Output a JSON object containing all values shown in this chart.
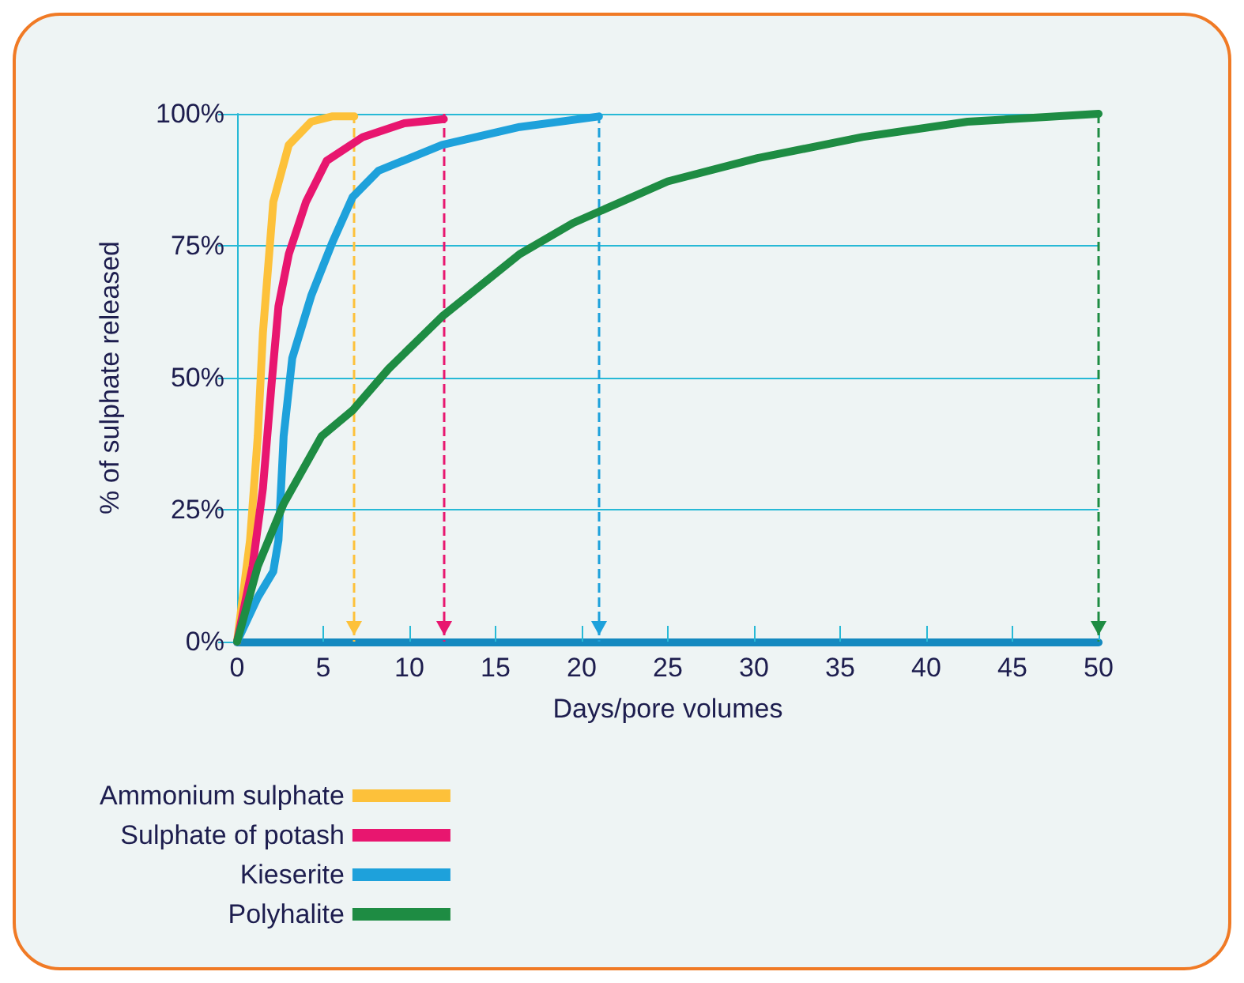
{
  "chart_data": {
    "type": "line",
    "xlabel": "Days/pore volumes",
    "ylabel": "% of sulphate released",
    "xlim": [
      0,
      50
    ],
    "xticks": [
      0,
      5,
      10,
      15,
      20,
      25,
      30,
      35,
      40,
      45,
      50
    ],
    "ylim": [
      0,
      100
    ],
    "yticks": [
      {
        "value": 0,
        "label": "0%"
      },
      {
        "value": 25,
        "label": "25%"
      },
      {
        "value": 50,
        "label": "50%"
      },
      {
        "value": 75,
        "label": "75%"
      },
      {
        "value": 100,
        "label": "100%"
      }
    ],
    "grid": "y",
    "legend": "bottom left",
    "marker": "none",
    "line_style": "solid",
    "series": [
      {
        "name": "Ammonium sulphate",
        "color": "#fdc13a",
        "x": [
          0,
          0.75,
          1.2,
          1.5,
          2.1,
          3.0,
          4.3,
          5.5,
          6.8
        ],
        "values": [
          0,
          19.2,
          38.9,
          58.6,
          83.3,
          94.1,
          98.5,
          99.5,
          99.5
        ]
      },
      {
        "name": "Sulphate of potash",
        "color": "#e8166f",
        "x": [
          0,
          0.9,
          1.5,
          2.0,
          2.4,
          3.0,
          4.0,
          5.2,
          7.3,
          9.7,
          12
        ],
        "values": [
          0,
          14.3,
          29.1,
          48.8,
          63.5,
          73.4,
          83.3,
          91.1,
          95.6,
          98.2,
          99
        ]
      },
      {
        "name": "Kieserite",
        "color": "#1ea1db",
        "x": [
          0,
          1.2,
          2.1,
          2.4,
          2.7,
          3.2,
          4.3,
          5.5,
          6.7,
          8.2,
          11.9,
          16.4,
          21
        ],
        "values": [
          0,
          8.4,
          13.3,
          19.2,
          38.9,
          53.7,
          65.5,
          75.4,
          84.2,
          89.2,
          94.1,
          97.5,
          99.5
        ]
      },
      {
        "name": "Polyhalite",
        "color": "#1e8c43",
        "x": [
          0,
          1.2,
          2.7,
          4.9,
          6.7,
          8.8,
          11.9,
          16.4,
          19.5,
          25,
          30.2,
          36.3,
          42.4,
          50
        ],
        "values": [
          0,
          14.3,
          26.1,
          38.9,
          43.8,
          51.7,
          61.6,
          73.4,
          79.3,
          87.2,
          91.6,
          95.6,
          98.5,
          100
        ]
      }
    ],
    "ref_lines": [
      {
        "axis": "x",
        "value": 6.8,
        "color": "#fdc13a",
        "line_style": "dashed"
      },
      {
        "axis": "x",
        "value": 12,
        "color": "#e8166f",
        "line_style": "dashed"
      },
      {
        "axis": "x",
        "value": 21,
        "color": "#1ea1db",
        "line_style": "dashed"
      },
      {
        "axis": "x",
        "value": 50,
        "color": "#1e8c43",
        "line_style": "dashed"
      }
    ]
  }
}
